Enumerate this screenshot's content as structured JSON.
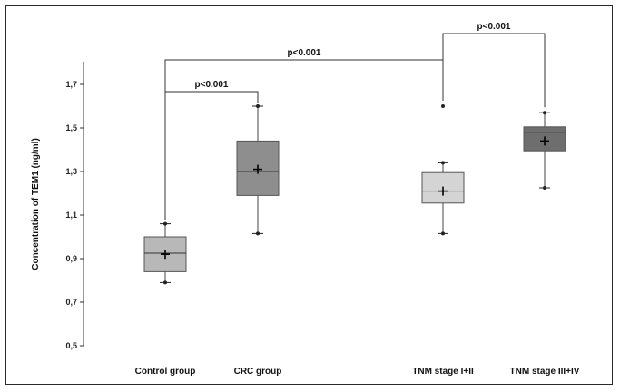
{
  "chart_data": {
    "type": "box",
    "ylabel": "Concentration of TEM1 (ng/ml)",
    "ylim": [
      0.5,
      1.7
    ],
    "yticks": [
      "0,5",
      "0,7",
      "0,9",
      "1,1",
      "1,3",
      "1,5",
      "1,7"
    ],
    "ytick_values": [
      0.5,
      0.7,
      0.9,
      1.1,
      1.3,
      1.5,
      1.7
    ],
    "grid": false,
    "categories": [
      "Control group",
      "CRC group",
      "TNM stage I+II",
      "TNM stage III+IV"
    ],
    "boxes": [
      {
        "category": "Control group",
        "min": 0.79,
        "q1": 0.84,
        "median": 0.925,
        "q3": 1.0,
        "max": 1.06,
        "mean": 0.92,
        "outliers": [],
        "color": "#b8b8b8"
      },
      {
        "category": "CRC group",
        "min": 1.015,
        "q1": 1.19,
        "median": 1.3,
        "q3": 1.44,
        "max": 1.6,
        "mean": 1.31,
        "outliers": [],
        "color": "#8e8e8e"
      },
      {
        "category": "TNM stage I+II",
        "min": 1.015,
        "q1": 1.155,
        "median": 1.21,
        "q3": 1.295,
        "max": 1.34,
        "mean": 1.21,
        "outliers": [
          1.6
        ],
        "color": "#d4d4d4"
      },
      {
        "category": "TNM stage III+IV",
        "min": 1.225,
        "q1": 1.395,
        "median": 1.48,
        "q3": 1.505,
        "max": 1.57,
        "mean": 1.44,
        "outliers": [],
        "color": "#6e6e6e"
      }
    ],
    "annotations": [
      {
        "text": "p<0.001",
        "from": "Control group",
        "to": "CRC group"
      },
      {
        "text": "p<0.001",
        "from": "Control group",
        "to": "TNM stage I+II"
      },
      {
        "text": "p<0.001",
        "from": "TNM stage I+II",
        "to": "TNM stage III+IV"
      }
    ]
  }
}
